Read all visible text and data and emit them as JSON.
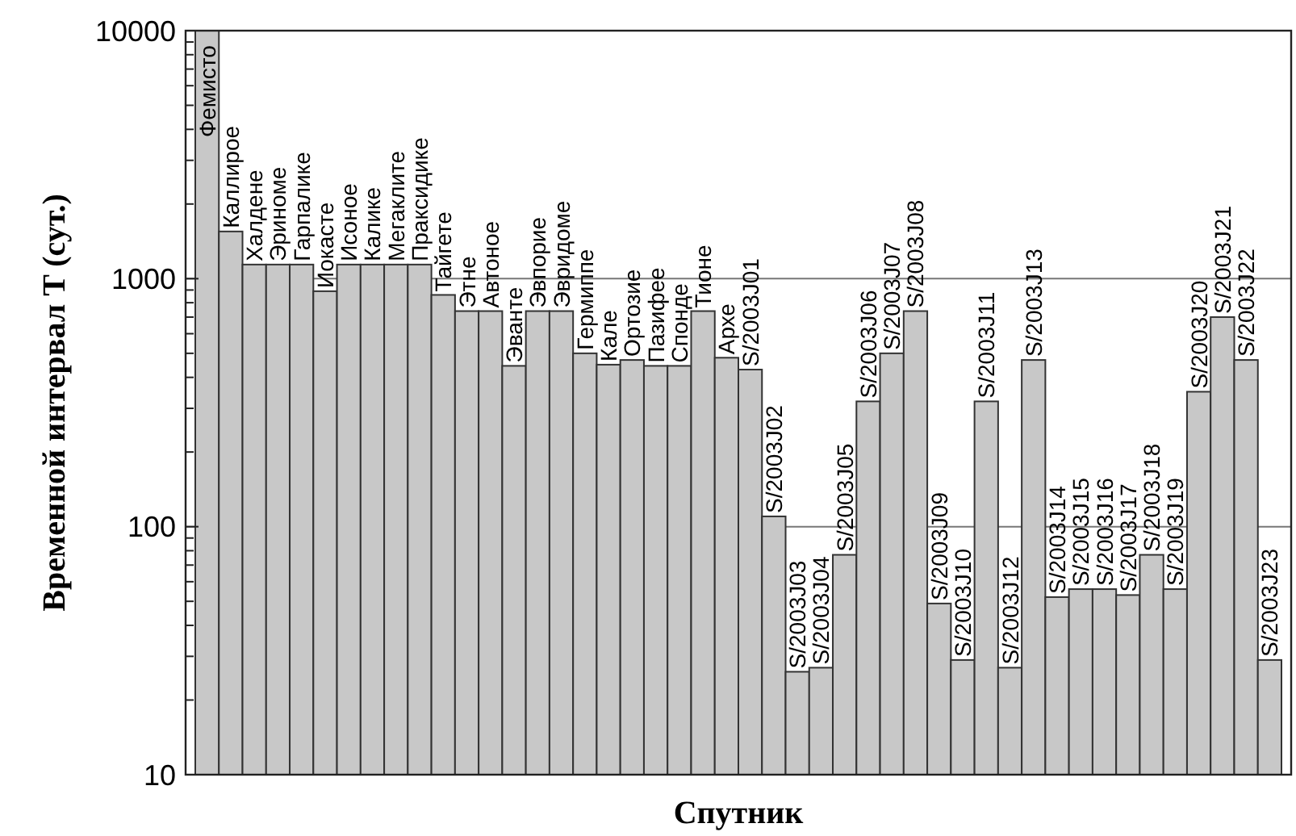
{
  "chart_data": {
    "type": "bar",
    "xlabel": "Спутник",
    "ylabel": "Временной интервал T (сут.)",
    "categories": [
      "Фемисто",
      "Каллирое",
      "Халдене",
      "Эриноме",
      "Гарпалике",
      "Иокасте",
      "Исоное",
      "Калике",
      "Мегаклите",
      "Праксидике",
      "Тайгете",
      "Этне",
      "Автоное",
      "Эванте",
      "Эвпорие",
      "Эвридоме",
      "Гермиппе",
      "Кале",
      "Ортозие",
      "Пазифее",
      "Спонде",
      "Тионе",
      "Архе",
      "S/2003J01",
      "S/2003J02",
      "S/2003J03",
      "S/2003J04",
      "S/2003J05",
      "S/2003J06",
      "S/2003J07",
      "S/2003J08",
      "S/2003J09",
      "S/2003J10",
      "S/2003J11",
      "S/2003J12",
      "S/2003J13",
      "S/2003J14",
      "S/2003J15",
      "S/2003J16",
      "S/2003J17",
      "S/2003J18",
      "S/2003J19",
      "S/2003J20",
      "S/2003J21",
      "S/2003J22",
      "S/2003J23"
    ],
    "values": [
      10000,
      1550,
      1140,
      1140,
      1140,
      890,
      1140,
      1140,
      1140,
      1140,
      860,
      740,
      740,
      445,
      740,
      740,
      500,
      450,
      470,
      445,
      445,
      740,
      480,
      430,
      110,
      26,
      27,
      77,
      320,
      500,
      740,
      49,
      29,
      320,
      27,
      470,
      52,
      56,
      56,
      53,
      77,
      56,
      350,
      700,
      470,
      29
    ],
    "color": "#c8c8c8",
    "log": true,
    "ylim": [
      10,
      10000
    ],
    "yticks": [
      10,
      {
        "value": 20,
        "label": null
      },
      {
        "value": 30,
        "label": null
      },
      {
        "value": 40,
        "label": null
      },
      {
        "value": 50,
        "label": null
      },
      {
        "value": 60,
        "label": null
      },
      {
        "value": 70,
        "label": null
      },
      {
        "value": 80,
        "label": null
      },
      {
        "value": 90,
        "label": null
      },
      100,
      {
        "value": 200,
        "label": null
      },
      {
        "value": 300,
        "label": null
      },
      {
        "value": 400,
        "label": null
      },
      {
        "value": 500,
        "label": null
      },
      {
        "value": 600,
        "label": null
      },
      {
        "value": 700,
        "label": null
      },
      {
        "value": 800,
        "label": null
      },
      {
        "value": 900,
        "label": null
      },
      1000,
      {
        "value": 2000,
        "label": null
      },
      {
        "value": 3000,
        "label": null
      },
      {
        "value": 4000,
        "label": null
      },
      {
        "value": 5000,
        "label": null
      },
      {
        "value": 6000,
        "label": null
      },
      {
        "value": 7000,
        "label": null
      },
      {
        "value": 8000,
        "label": null
      },
      {
        "value": 9000,
        "label": null
      },
      10000
    ],
    "grid": "y"
  }
}
